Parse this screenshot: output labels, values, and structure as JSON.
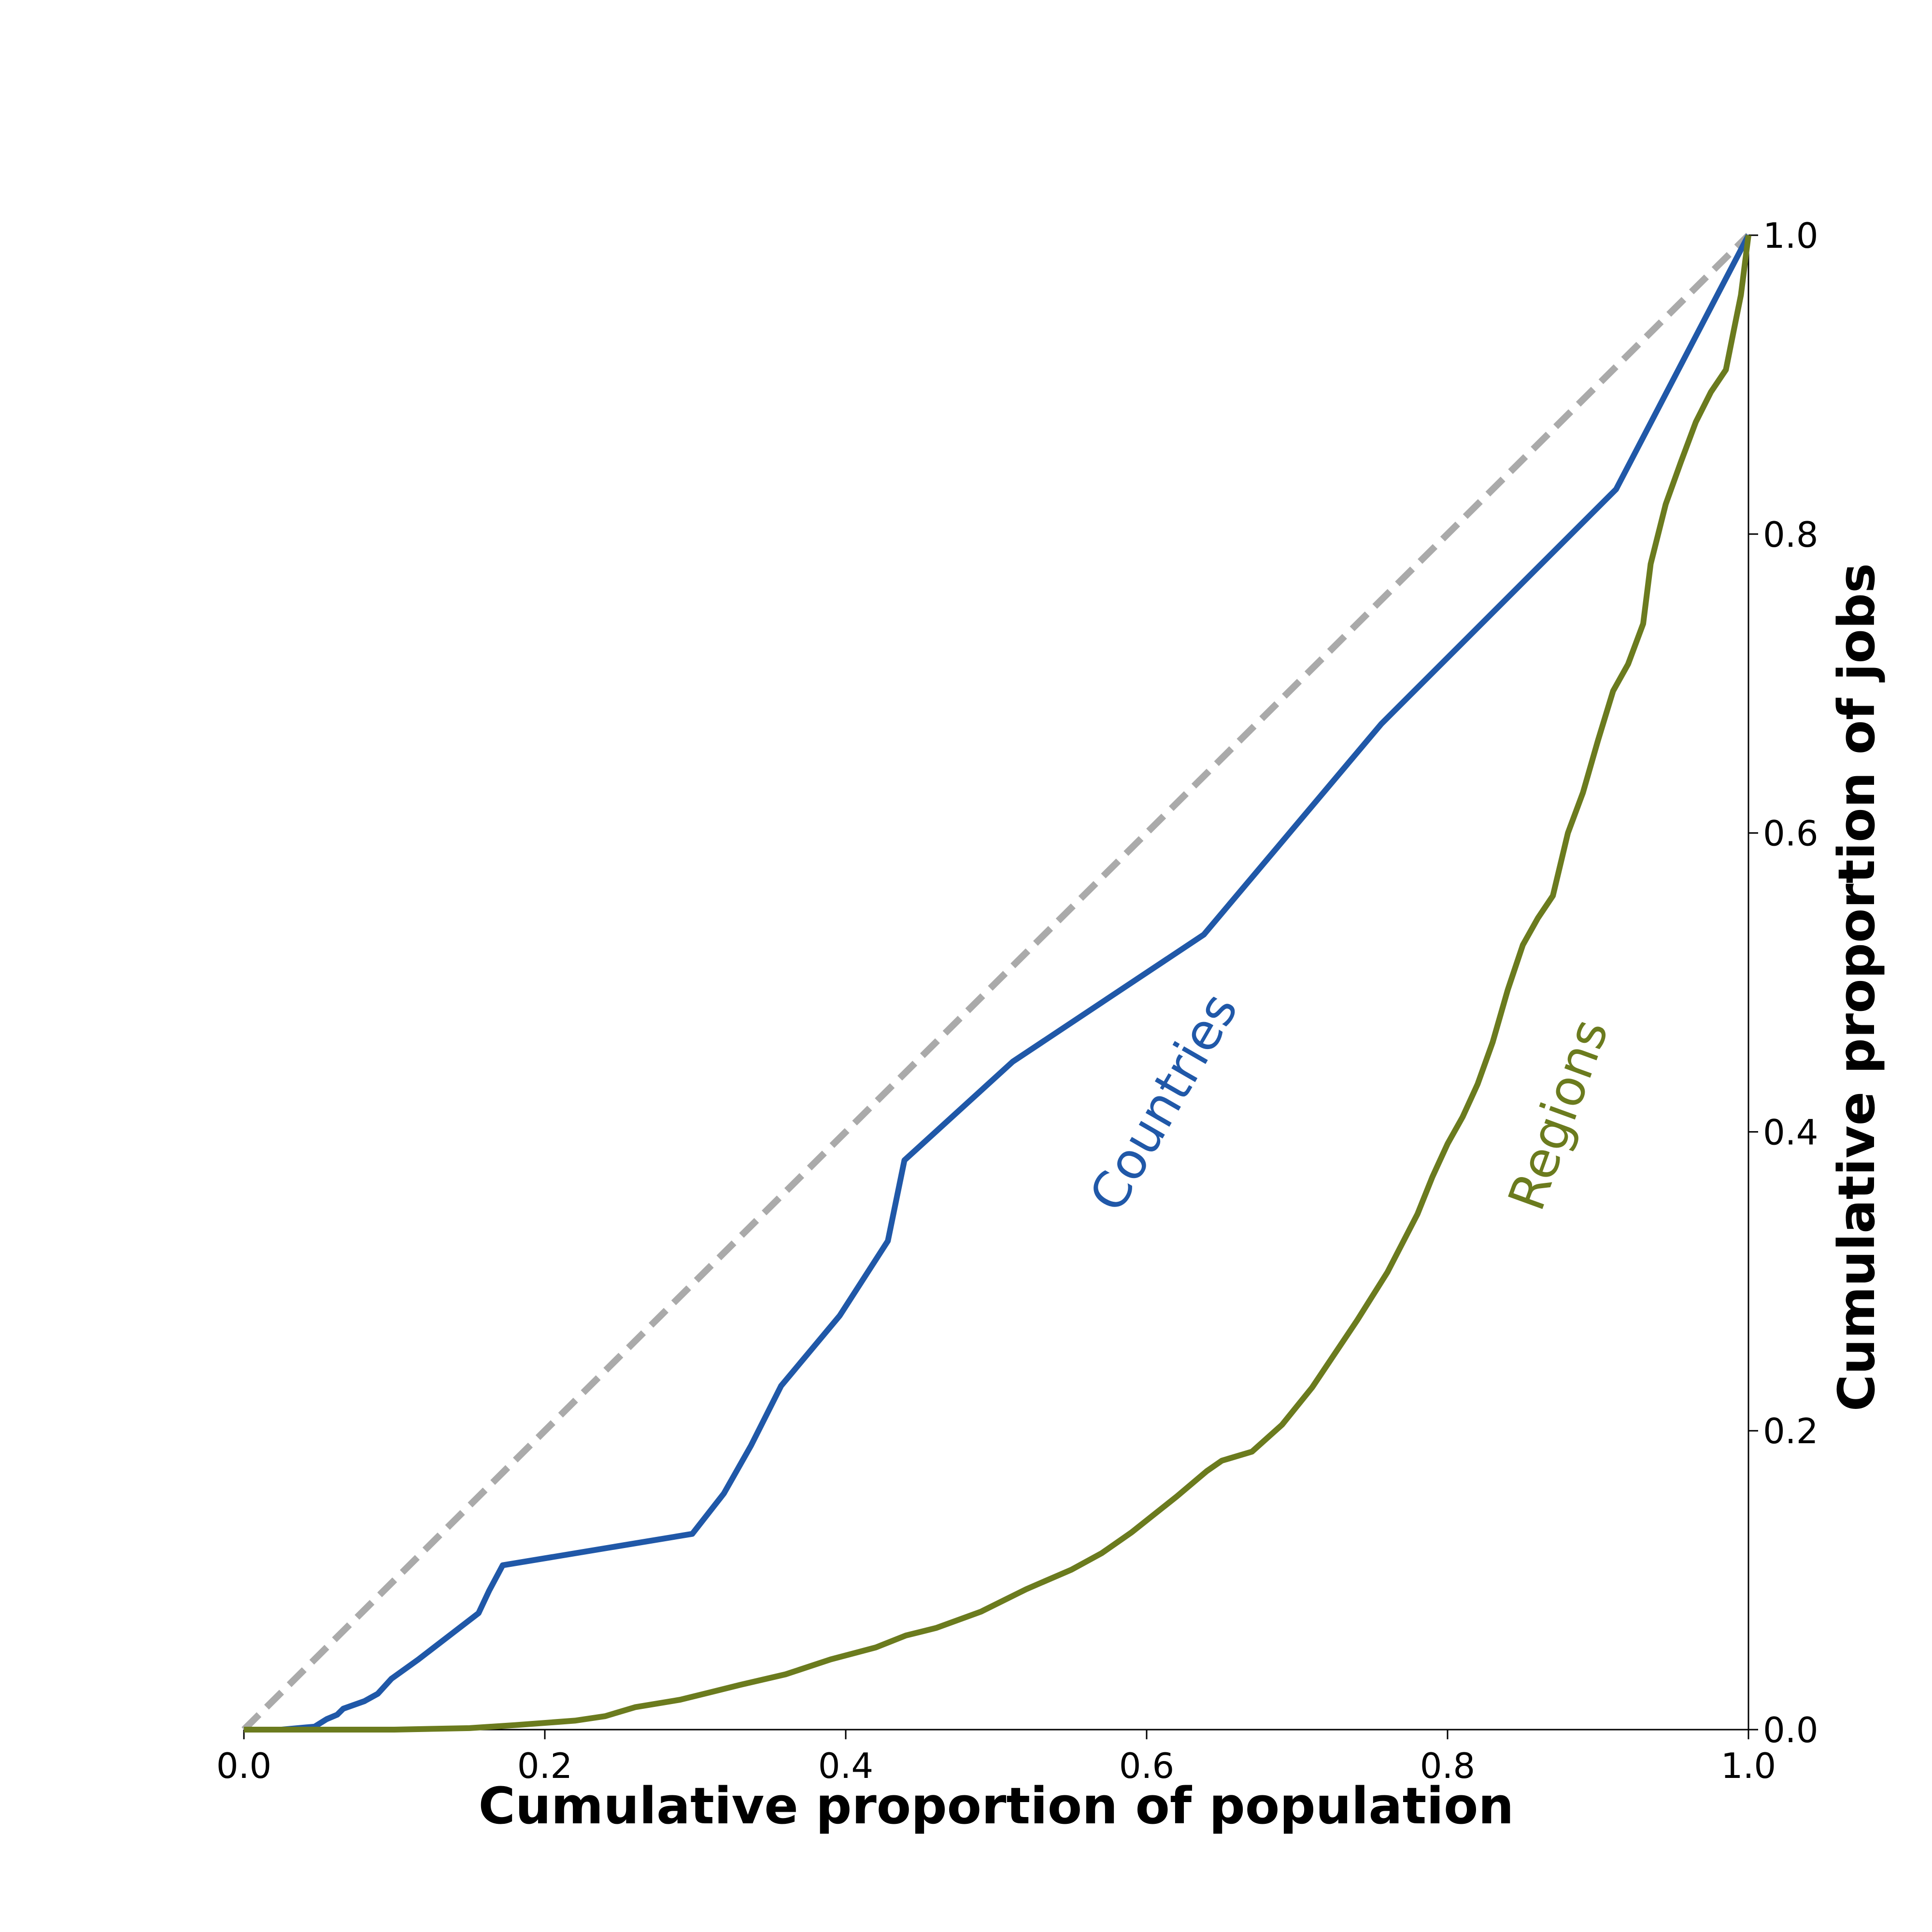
{
  "chart_data": {
    "type": "line",
    "xlabel": "Cumulative proportion of population",
    "ylabel": "Cumulative proportion of jobs",
    "xlim": [
      0,
      1
    ],
    "ylim": [
      0,
      1
    ],
    "x_ticks": [
      "0.0",
      "0.2",
      "0.4",
      "0.6",
      "0.8",
      "1.0"
    ],
    "y_ticks": [
      "0.0",
      "0.2",
      "0.4",
      "0.6",
      "0.8",
      "1.0"
    ],
    "y_axis_position": "right",
    "grid": false,
    "legend": "none",
    "equality_line": {
      "points": [
        [
          0,
          0
        ],
        [
          1,
          1
        ]
      ],
      "color": "#aaaaaa",
      "style": "dashed"
    },
    "series": [
      {
        "name": "Countries",
        "color": "#2058a8",
        "points": [
          [
            0.0,
            0.0
          ],
          [
            0.025,
            0.0
          ],
          [
            0.047,
            0.002
          ],
          [
            0.055,
            0.007
          ],
          [
            0.062,
            0.01
          ],
          [
            0.066,
            0.014
          ],
          [
            0.08,
            0.019
          ],
          [
            0.089,
            0.024
          ],
          [
            0.098,
            0.034
          ],
          [
            0.116,
            0.047
          ],
          [
            0.156,
            0.078
          ],
          [
            0.163,
            0.093
          ],
          [
            0.172,
            0.11
          ],
          [
            0.298,
            0.131
          ],
          [
            0.319,
            0.158
          ],
          [
            0.337,
            0.19
          ],
          [
            0.357,
            0.23
          ],
          [
            0.396,
            0.277
          ],
          [
            0.428,
            0.327
          ],
          [
            0.439,
            0.381
          ],
          [
            0.511,
            0.447
          ],
          [
            0.638,
            0.532
          ],
          [
            0.756,
            0.673
          ],
          [
            0.912,
            0.83
          ],
          [
            1.0,
            1.0
          ]
        ]
      },
      {
        "name": "Regions",
        "color": "#6b7b1e",
        "points": [
          [
            0.0,
            0.0
          ],
          [
            0.1,
            0.0
          ],
          [
            0.15,
            0.001
          ],
          [
            0.18,
            0.003
          ],
          [
            0.22,
            0.006
          ],
          [
            0.24,
            0.009
          ],
          [
            0.26,
            0.015
          ],
          [
            0.29,
            0.02
          ],
          [
            0.31,
            0.025
          ],
          [
            0.33,
            0.03
          ],
          [
            0.36,
            0.037
          ],
          [
            0.39,
            0.047
          ],
          [
            0.42,
            0.055
          ],
          [
            0.44,
            0.063
          ],
          [
            0.46,
            0.068
          ],
          [
            0.49,
            0.079
          ],
          [
            0.52,
            0.094
          ],
          [
            0.55,
            0.107
          ],
          [
            0.57,
            0.118
          ],
          [
            0.59,
            0.132
          ],
          [
            0.62,
            0.156
          ],
          [
            0.64,
            0.173
          ],
          [
            0.65,
            0.18
          ],
          [
            0.67,
            0.186
          ],
          [
            0.69,
            0.204
          ],
          [
            0.71,
            0.229
          ],
          [
            0.74,
            0.274
          ],
          [
            0.76,
            0.306
          ],
          [
            0.78,
            0.345
          ],
          [
            0.79,
            0.37
          ],
          [
            0.8,
            0.392
          ],
          [
            0.81,
            0.41
          ],
          [
            0.82,
            0.432
          ],
          [
            0.83,
            0.46
          ],
          [
            0.84,
            0.495
          ],
          [
            0.85,
            0.525
          ],
          [
            0.86,
            0.543
          ],
          [
            0.87,
            0.558
          ],
          [
            0.88,
            0.6
          ],
          [
            0.89,
            0.627
          ],
          [
            0.9,
            0.662
          ],
          [
            0.91,
            0.695
          ],
          [
            0.92,
            0.713
          ],
          [
            0.93,
            0.74
          ],
          [
            0.935,
            0.78
          ],
          [
            0.945,
            0.82
          ],
          [
            0.955,
            0.848
          ],
          [
            0.965,
            0.875
          ],
          [
            0.975,
            0.895
          ],
          [
            0.985,
            0.91
          ],
          [
            0.99,
            0.935
          ],
          [
            0.995,
            0.96
          ],
          [
            1.0,
            1.0
          ]
        ]
      }
    ]
  }
}
